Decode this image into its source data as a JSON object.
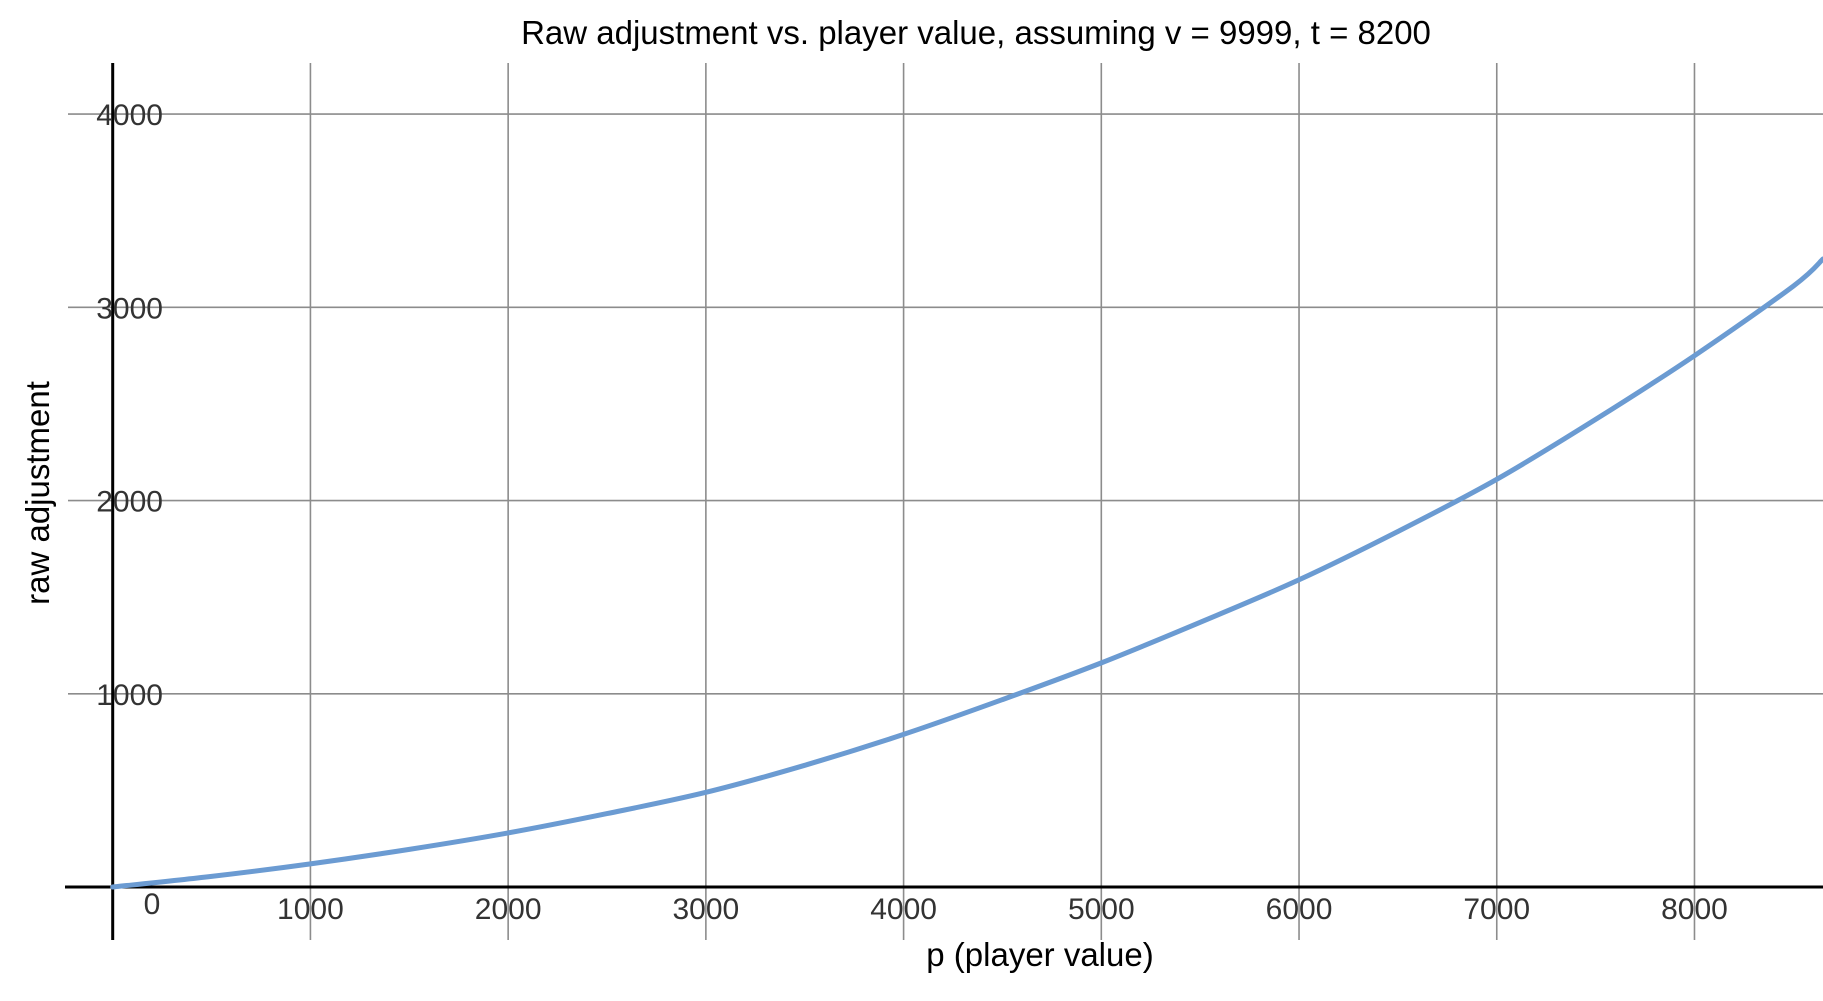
{
  "chart_data": {
    "type": "line",
    "title": "Raw adjustment vs. player value, assuming v = 9999, t = 8200",
    "xlabel": "p (player value)",
    "ylabel": "raw adjustment",
    "origin_label": "0",
    "xlim": [
      -570,
      8650
    ],
    "ylim": [
      -300,
      4280
    ],
    "grid": true,
    "x_ticks": [
      1000,
      2000,
      3000,
      4000,
      5000,
      6000,
      7000,
      8000
    ],
    "x_tick_labels": [
      "1000",
      "2000",
      "3000",
      "4000",
      "5000",
      "6000",
      "7000",
      "8000"
    ],
    "y_ticks": [
      1000,
      2000,
      3000,
      4000
    ],
    "y_tick_labels": [
      "1000",
      "2000",
      "3000",
      "4000"
    ],
    "series": [
      {
        "color": "#6b9bd2",
        "x": [
          0,
          500,
          1000,
          1500,
          2000,
          2500,
          3000,
          3500,
          4000,
          4500,
          5000,
          5500,
          6000,
          6500,
          7000,
          7500,
          8000,
          8500,
          8650
        ],
        "y": [
          0,
          55,
          120,
          195,
          280,
          380,
          490,
          630,
          790,
          970,
          1160,
          1370,
          1590,
          1840,
          2110,
          2420,
          2750,
          3110,
          3250
        ]
      }
    ]
  }
}
